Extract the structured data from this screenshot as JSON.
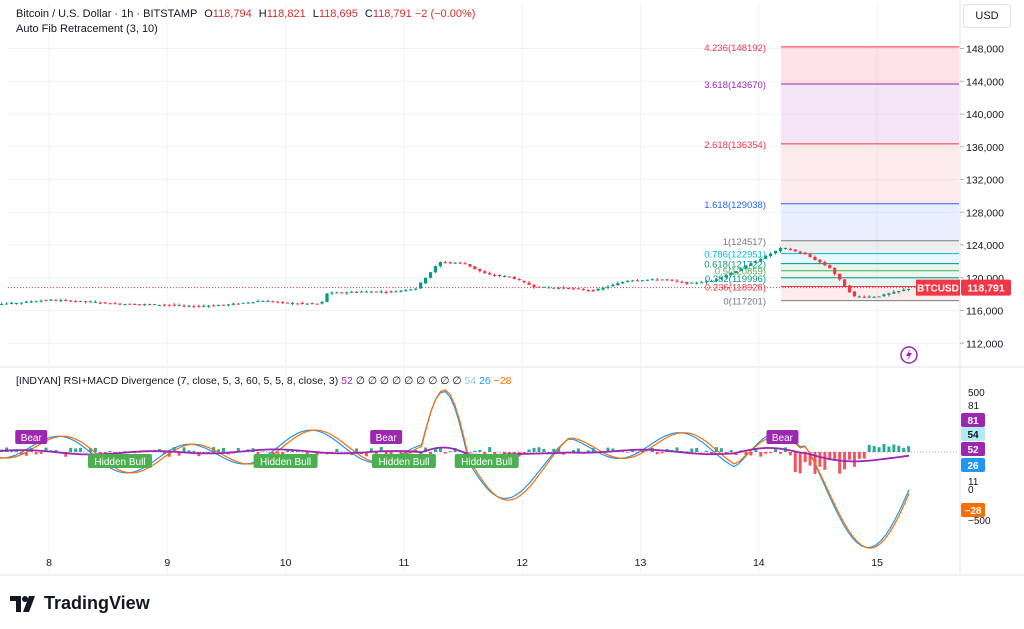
{
  "header": {
    "symbol": "Bitcoin / U.S. Dollar · 1h · BITSTAMP",
    "o_label": "O",
    "o": "118,794",
    "h_label": "H",
    "h": "118,821",
    "l_label": "L",
    "l": "118,695",
    "c_label": "C",
    "c": "118,791",
    "change": "−2 (−0.00%)",
    "indicator_name": "Auto Fib Retracement (3, 10)",
    "currency_button": "USD"
  },
  "colors": {
    "up": "#089981",
    "down": "#f23645",
    "fib_red": "#f23645",
    "fib_purple": "#9c27b0",
    "fib_blue": "#2962ff",
    "fib_green": "#089981",
    "rsi_purple": "#9c27b0",
    "macd_blue": "#2196f3",
    "signal_orange": "#ff6d00"
  },
  "lower_indicator": {
    "title": "[INDYAN] RSI+MACD Divergence (7, close, 5, 3, 60, 5, 5, 8, close, 3)",
    "values": [
      "52",
      "∅",
      "∅",
      "∅",
      "∅",
      "∅",
      "∅",
      "∅",
      "∅",
      "∅",
      "54",
      "26",
      "−28"
    ],
    "value_colors": [
      "#9c27b0",
      "#131722",
      "#131722",
      "#131722",
      "#131722",
      "#131722",
      "#131722",
      "#131722",
      "#131722",
      "#131722",
      "#8ecbe0",
      "#2196f3",
      "#ff6d00"
    ]
  },
  "brand": "TradingView",
  "chart_data": [
    {
      "type": "candlestick",
      "title": "Bitcoin / U.S. Dollar · 1h · BITSTAMP",
      "x_ticks": [
        "8",
        "9",
        "10",
        "11",
        "12",
        "13",
        "14",
        "15"
      ],
      "y_ticks": [
        112000,
        116000,
        120000,
        124000,
        128000,
        132000,
        136000,
        140000,
        144000,
        148000
      ],
      "y_tick_labels": [
        "112,000",
        "116,000",
        "120,000",
        "124,000",
        "128,000",
        "132,000",
        "136,000",
        "140,000",
        "144,000",
        "148,000"
      ],
      "ylim": [
        109000,
        151000
      ],
      "price_path": [
        [
          7.4,
          116600
        ],
        [
          7.7,
          116900
        ],
        [
          8.0,
          117300
        ],
        [
          8.3,
          117100
        ],
        [
          8.6,
          116800
        ],
        [
          9.0,
          116700
        ],
        [
          9.2,
          116500
        ],
        [
          9.5,
          116700
        ],
        [
          9.8,
          117200
        ],
        [
          10.0,
          116900
        ],
        [
          10.3,
          116800
        ],
        [
          10.35,
          118100
        ],
        [
          10.6,
          118300
        ],
        [
          10.9,
          118300
        ],
        [
          11.1,
          118700
        ],
        [
          11.3,
          121900
        ],
        [
          11.5,
          121800
        ],
        [
          11.7,
          120400
        ],
        [
          11.9,
          120100
        ],
        [
          12.1,
          118900
        ],
        [
          12.4,
          118700
        ],
        [
          12.6,
          118400
        ],
        [
          12.9,
          119700
        ],
        [
          13.2,
          119800
        ],
        [
          13.4,
          119300
        ],
        [
          13.6,
          119600
        ],
        [
          13.8,
          120800
        ],
        [
          14.0,
          122200
        ],
        [
          14.2,
          123700
        ],
        [
          14.4,
          122800
        ],
        [
          14.6,
          121200
        ],
        [
          14.8,
          117700
        ],
        [
          15.0,
          117700
        ],
        [
          15.3,
          118791
        ]
      ],
      "last_price": 118791,
      "last_price_label": "118,791",
      "symbol_tag": "BTCUSD",
      "fib_levels": [
        {
          "label": "4.236(148192)",
          "value": 148192,
          "color": "#f23645"
        },
        {
          "label": "3.618(143670)",
          "value": 143670,
          "color": "#9c27b0"
        },
        {
          "label": "2.618(136354)",
          "value": 136354,
          "color": "#f23645"
        },
        {
          "label": "1.618(129038)",
          "value": 129038,
          "color": "#2962ff"
        },
        {
          "label": "1(124517)",
          "value": 124517,
          "color": "#787b86"
        },
        {
          "label": "0.786(122951)",
          "value": 122951,
          "color": "#00bcd4"
        },
        {
          "label": "0.618(121722)",
          "value": 121722,
          "color": "#089981"
        },
        {
          "label": "0.5(120859)",
          "value": 120859,
          "color": "#4caf50"
        },
        {
          "label": "0.382(119996)",
          "value": 119996,
          "color": "#089981"
        },
        {
          "label": "0.236(118928)",
          "value": 118928,
          "color": "#f23645"
        },
        {
          "label": "0(117201)",
          "value": 117201,
          "color": "#787b86"
        }
      ]
    },
    {
      "type": "line",
      "title": "[INDYAN] RSI+MACD Divergence (7, close, 5, 3, 60, 5, 5, 8, close, 3)",
      "y_ticks": [
        500,
        81,
        54,
        52,
        26,
        11,
        0,
        -28,
        -500
      ],
      "y_tick_labels": [
        "500",
        "81",
        "54",
        "52",
        "26",
        "11",
        "0",
        "−28",
        "−500"
      ],
      "last_value_badges": [
        {
          "label": "81",
          "color": "#9c27b0"
        },
        {
          "label": "54",
          "color": "#b2ebf2"
        },
        {
          "label": "52",
          "color": "#9c27b0"
        },
        {
          "label": "26",
          "color": "#2196f3"
        },
        {
          "label": "−28",
          "color": "#ff6d00"
        }
      ],
      "signals": [
        {
          "x": 7.85,
          "label": "Bear"
        },
        {
          "x": 8.6,
          "label": "Hidden Bull"
        },
        {
          "x": 10.0,
          "label": "Hidden Bull"
        },
        {
          "x": 10.85,
          "label": "Bear"
        },
        {
          "x": 11.0,
          "label": "Hidden Bull"
        },
        {
          "x": 11.7,
          "label": "Hidden Bull"
        },
        {
          "x": 14.2,
          "label": "Bear"
        }
      ]
    }
  ]
}
